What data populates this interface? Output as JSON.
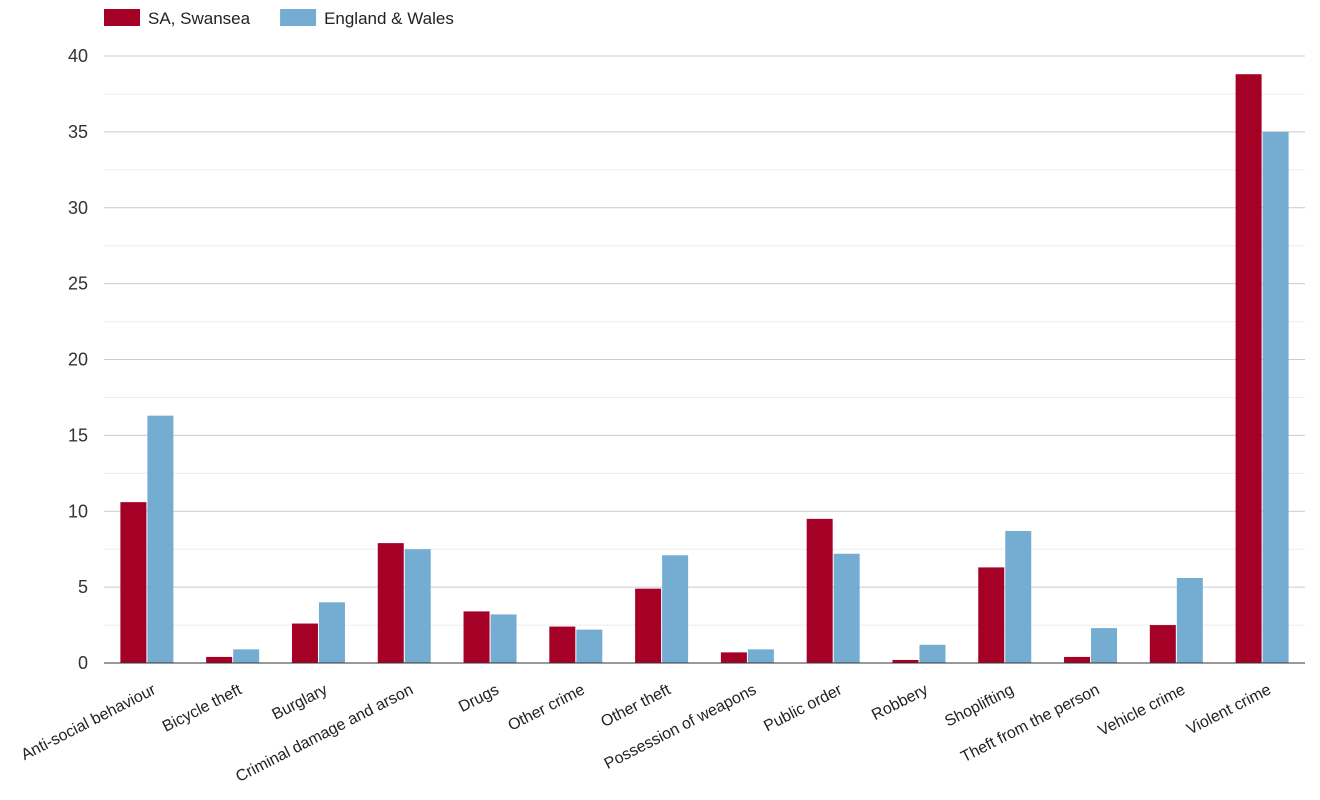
{
  "chart_data": {
    "type": "bar",
    "title": "",
    "xlabel": "",
    "ylabel": "",
    "ylim": [
      0,
      40
    ],
    "yticks": [
      0,
      5,
      10,
      15,
      20,
      25,
      30,
      35,
      40
    ],
    "ytick_labels": [
      "0",
      "5",
      "10",
      "15",
      "20",
      "25",
      "30",
      "35",
      "40"
    ],
    "grid": true,
    "legend": "top-left",
    "categories": [
      "Anti-social behaviour",
      "Bicycle theft",
      "Burglary",
      "Criminal damage and arson",
      "Drugs",
      "Other crime",
      "Other theft",
      "Possession of weapons",
      "Public order",
      "Robbery",
      "Shoplifting",
      "Theft from the person",
      "Vehicle crime",
      "Violent crime"
    ],
    "series": [
      {
        "name": "SA, Swansea",
        "color": "#a50026",
        "values": [
          10.6,
          0.4,
          2.6,
          7.9,
          3.4,
          2.4,
          4.9,
          0.7,
          9.5,
          0.2,
          6.3,
          0.4,
          2.5,
          38.8
        ]
      },
      {
        "name": "England & Wales",
        "color": "#74add1",
        "values": [
          16.3,
          0.9,
          4.0,
          7.5,
          3.2,
          2.2,
          7.1,
          0.9,
          7.2,
          1.2,
          8.7,
          2.3,
          5.6,
          35.0
        ]
      }
    ]
  }
}
